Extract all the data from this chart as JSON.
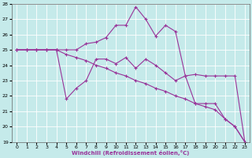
{
  "xlabel": "Windchill (Refroidissement éolien,°C)",
  "background_color": "#c5eaea",
  "line_color": "#993399",
  "grid_color": "#ffffff",
  "xlim": [
    -0.5,
    23.5
  ],
  "ylim": [
    19,
    28
  ],
  "yticks": [
    19,
    20,
    21,
    22,
    23,
    24,
    25,
    26,
    27,
    28
  ],
  "xticks": [
    0,
    1,
    2,
    3,
    4,
    5,
    6,
    7,
    8,
    9,
    10,
    11,
    12,
    13,
    14,
    15,
    16,
    17,
    18,
    19,
    20,
    21,
    22,
    23
  ],
  "series": [
    {
      "x": [
        0,
        1,
        2,
        3,
        4,
        5,
        6,
        7,
        8,
        9,
        10,
        11,
        12,
        13,
        14,
        15,
        16,
        17,
        18,
        19,
        20,
        21,
        22,
        23
      ],
      "y": [
        25,
        25,
        25,
        25,
        25,
        25,
        25,
        25.4,
        25.5,
        25.8,
        26.6,
        26.6,
        27.8,
        27.0,
        25.9,
        26.6,
        26.2,
        23.3,
        23.4,
        23.3,
        23.3,
        23.3,
        23.3,
        19.0
      ]
    },
    {
      "x": [
        0,
        1,
        2,
        3,
        4,
        5,
        6,
        7,
        8,
        9,
        10,
        11,
        12,
        13,
        14,
        15,
        16,
        17,
        18,
        19,
        20,
        21,
        22,
        23
      ],
      "y": [
        25,
        25,
        25,
        25,
        25,
        21.8,
        22.5,
        23.0,
        24.4,
        24.4,
        24.1,
        24.5,
        23.8,
        24.4,
        24.0,
        23.5,
        23.0,
        23.3,
        21.5,
        21.5,
        21.5,
        20.5,
        20.0,
        19.0
      ]
    },
    {
      "x": [
        0,
        1,
        2,
        3,
        4,
        5,
        6,
        7,
        8,
        9,
        10,
        11,
        12,
        13,
        14,
        15,
        16,
        17,
        18,
        19,
        20,
        21,
        22,
        23
      ],
      "y": [
        25,
        25,
        25,
        25,
        25,
        24.7,
        24.5,
        24.3,
        24.0,
        23.8,
        23.5,
        23.3,
        23.0,
        22.8,
        22.5,
        22.3,
        22.0,
        21.8,
        21.5,
        21.3,
        21.1,
        20.5,
        20.0,
        19.0
      ]
    }
  ]
}
